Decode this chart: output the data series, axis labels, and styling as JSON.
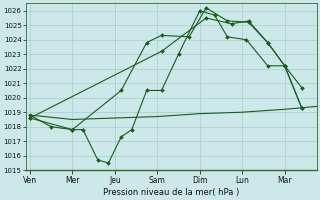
{
  "background_color": "#cce8e8",
  "grid_color": "#a8cccc",
  "line_color": "#1a5c1a",
  "xlabel": "Pression niveau de la mer( hPa )",
  "ylim": [
    1015,
    1026.5
  ],
  "yticks": [
    1015,
    1016,
    1017,
    1018,
    1019,
    1020,
    1021,
    1022,
    1023,
    1024,
    1025,
    1026
  ],
  "xtick_labels": [
    "Ven",
    "Mer",
    "Jeu",
    "Sam",
    "Dim",
    "Lun",
    "Mar"
  ],
  "xtick_positions": [
    0,
    2,
    4,
    6,
    8,
    10,
    12
  ],
  "xlim": [
    -0.2,
    13.5
  ],
  "series_flat": {
    "x": [
      0,
      2,
      4,
      6,
      8,
      10,
      12,
      13.5
    ],
    "y": [
      1018.8,
      1018.5,
      1018.6,
      1018.7,
      1018.9,
      1019.0,
      1019.2,
      1019.4
    ]
  },
  "series_jagged": {
    "x": [
      0,
      1.0,
      2.0,
      2.5,
      3.2,
      3.7,
      4.3,
      4.8,
      5.5,
      6.2,
      7.0,
      8.0,
      8.7,
      9.3,
      10.2,
      11.2,
      12.0,
      12.8
    ],
    "y": [
      1018.8,
      1018.0,
      1017.8,
      1017.8,
      1015.7,
      1015.5,
      1017.3,
      1017.8,
      1020.5,
      1020.5,
      1023.0,
      1026.0,
      1025.7,
      1024.2,
      1024.0,
      1022.2,
      1022.2,
      1020.7
    ]
  },
  "series_mid": {
    "x": [
      0,
      2.0,
      4.3,
      5.5,
      6.2,
      7.5,
      8.3,
      9.3,
      10.3,
      11.2,
      12.0,
      12.8
    ],
    "y": [
      1018.6,
      1017.8,
      1020.5,
      1023.8,
      1024.3,
      1024.2,
      1026.2,
      1025.3,
      1025.2,
      1023.8,
      1022.2,
      1019.3
    ]
  },
  "series_smooth": {
    "x": [
      0,
      6.2,
      8.3,
      9.5,
      10.3,
      11.2,
      12.0,
      12.8
    ],
    "y": [
      1018.6,
      1023.2,
      1025.5,
      1025.1,
      1025.3,
      1023.8,
      1022.2,
      1019.3
    ]
  }
}
